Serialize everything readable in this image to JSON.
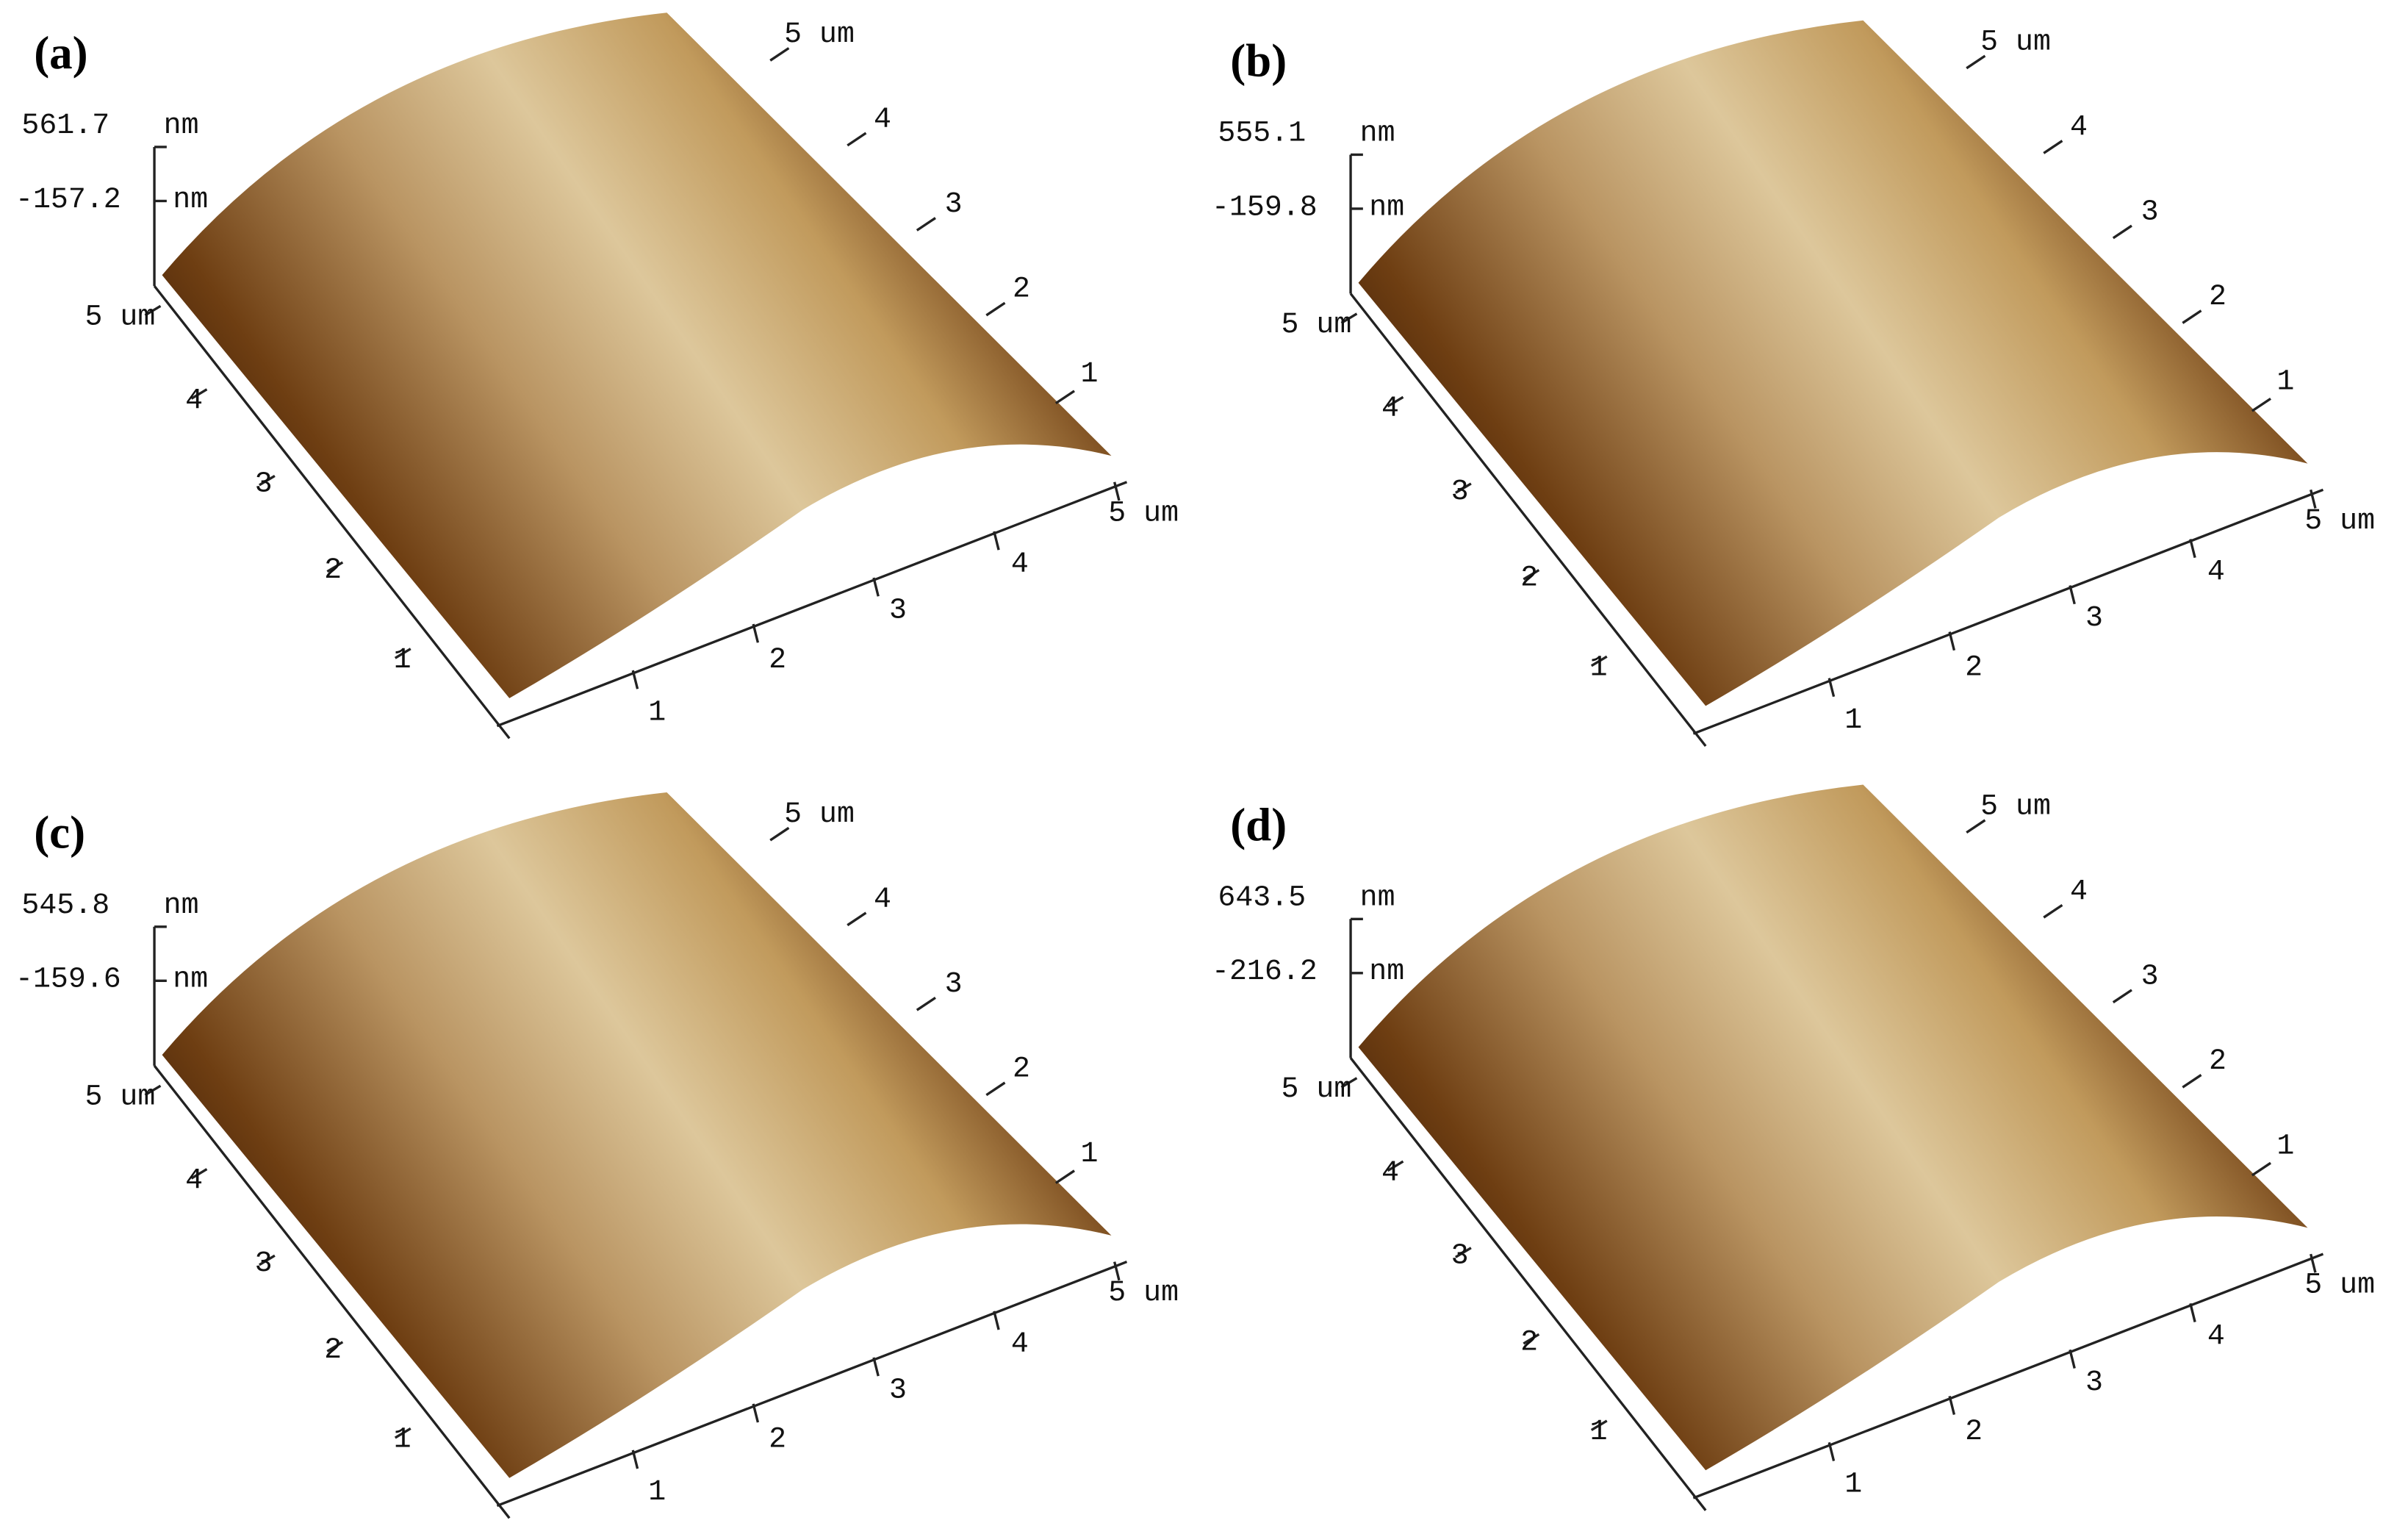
{
  "panels": [
    {
      "label": "(a)",
      "z_top": "561.7",
      "z_bottom": "-157.2"
    },
    {
      "label": "(b)",
      "z_top": "555.1",
      "z_bottom": "-159.8"
    },
    {
      "label": "(c)",
      "z_top": "545.8",
      "z_bottom": "-159.6"
    },
    {
      "label": "(d)",
      "z_top": "643.5",
      "z_bottom": "-216.2"
    }
  ],
  "z_unit": "nm",
  "axis_ticks": [
    "1",
    "2",
    "3",
    "4",
    "5 um"
  ]
}
